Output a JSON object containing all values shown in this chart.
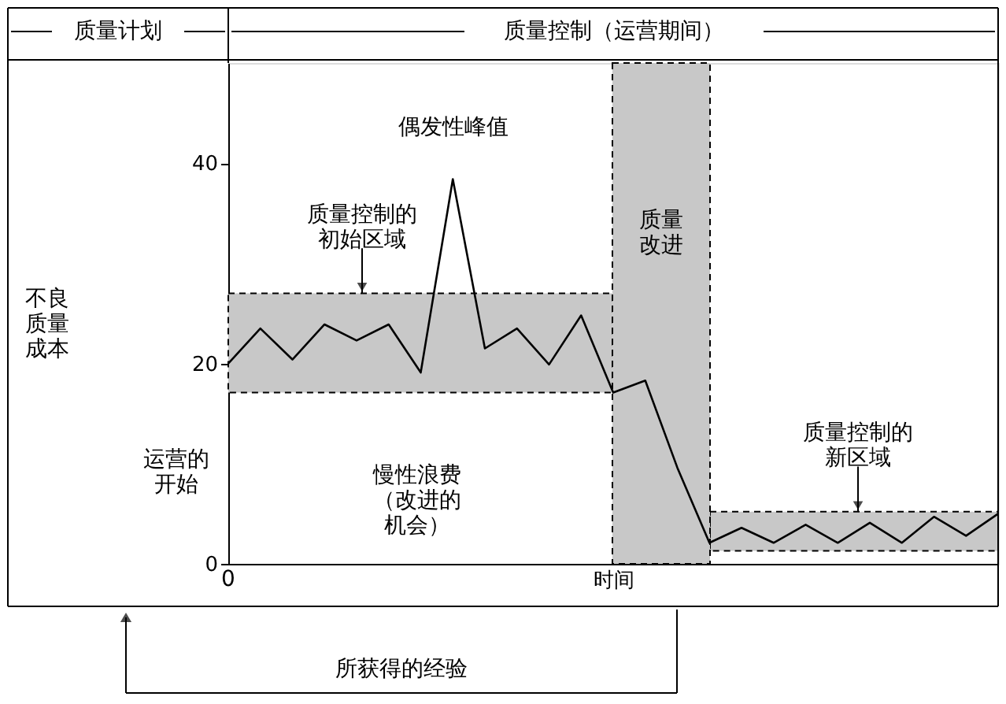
{
  "chart_data": {
    "type": "line",
    "xlabel": "时间",
    "categories": [
      null,
      null,
      null,
      null,
      null,
      null,
      null,
      null,
      null,
      null,
      null,
      null,
      null,
      null,
      null,
      null,
      null,
      null,
      null,
      null,
      null,
      null,
      null,
      null,
      null
    ],
    "series": [
      {
        "color": "#000000",
        "values": [
          20,
          23.5,
          20.4,
          23.9,
          22.3,
          23.9,
          19.1,
          38.4,
          21.5,
          23.5,
          19.9,
          24.8,
          17.1,
          18.3,
          9.6,
          2.1,
          3.6,
          2.1,
          3.9,
          2.1,
          4.1,
          2.1,
          4.7,
          2.8,
          5.0
        ]
      }
    ],
    "ylim": [
      0,
      50
    ],
    "yticks": [
      0,
      20,
      40
    ],
    "bands": [
      {
        "axis": "y",
        "from": 17.1,
        "to": 27,
        "color": "#c8c8c8"
      },
      {
        "axis": "y",
        "from": 1.3,
        "to": 5.2,
        "color": "#c8c8c8"
      }
    ],
    "annotations": [
      "质量计划",
      "质量控制（运营期间）",
      {
        "text": "偶发性峰值",
        "y": 38.4
      },
      {
        "text": "质量控制的初始区域",
        "y": 27
      },
      "慢性浪费（改进的机会）",
      {
        "text": "质量控制的新区域",
        "y": 5.2
      },
      "运营的开始",
      "所获得的经验",
      "0",
      "质量改进",
      "不良质量成本"
    ],
    "grid": false,
    "marker": "none",
    "line_style": "solid"
  }
}
